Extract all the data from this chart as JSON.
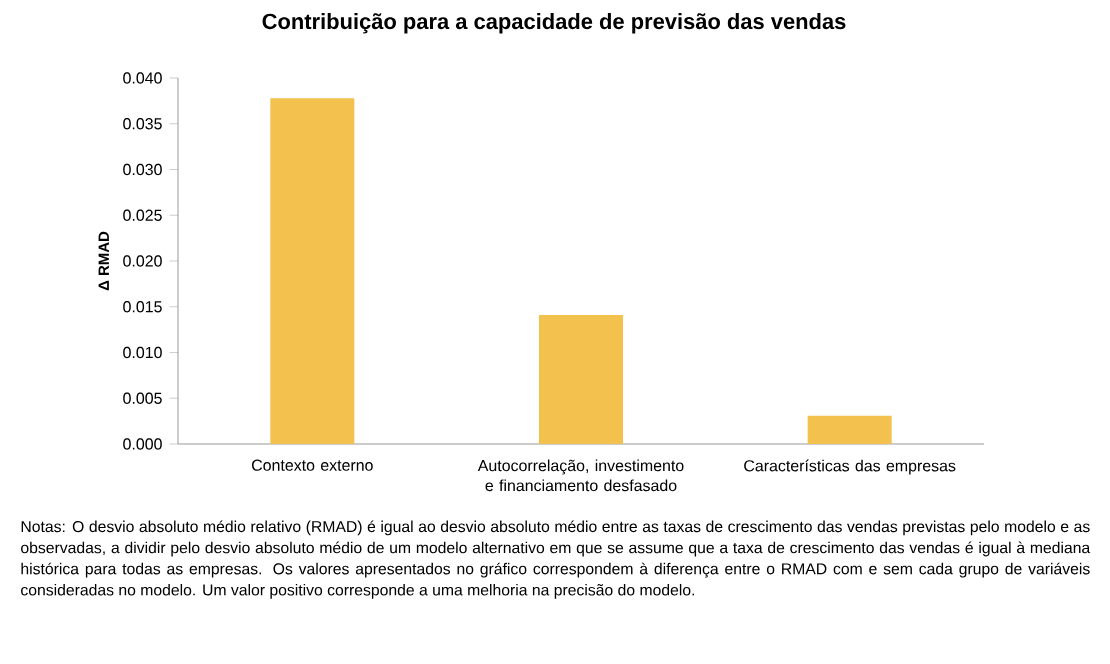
{
  "chart_data": {
    "type": "bar",
    "title": "Contribuição para a capacidade de previsão das vendas",
    "ylabel": "Δ RMAD",
    "categories": [
      "Contexto externo",
      "Autocorrelação, investimento e financiamento desfasado",
      "Características das empresas"
    ],
    "values": [
      0.0378,
      0.0141,
      0.0031
    ],
    "color": "#f2c14e",
    "ylim": [
      0,
      0.04
    ],
    "yticks": [
      {
        "value": 0,
        "label": "0.000"
      },
      {
        "value": 0.005,
        "label": "0.005"
      },
      {
        "value": 0.01,
        "label": "0.010"
      },
      {
        "value": 0.015,
        "label": "0.015"
      },
      {
        "value": 0.02,
        "label": "0.020"
      },
      {
        "value": 0.025,
        "label": "0.025"
      },
      {
        "value": 0.03,
        "label": "0.030"
      },
      {
        "value": 0.035,
        "label": "0.035"
      },
      {
        "value": 0.04,
        "label": "0.040"
      }
    ],
    "grid": false,
    "annotations": [
      "Notas: O desvio absoluto médio relativo (RMAD) é igual ao desvio absoluto médio entre as taxas de crescimento das vendas previstas pelo modelo e as observadas, a dividir pelo desvio absoluto médio de um modelo alternativo em que se assume que a taxa de crescimento das vendas é igual à mediana histórica para todas as empresas. Os valores apresentados no gráfico correspondem à diferença entre o RMAD com e sem cada grupo de variáveis consideradas no modelo. Um valor positivo corresponde a uma melhoria na precisão do modelo."
    ]
  }
}
